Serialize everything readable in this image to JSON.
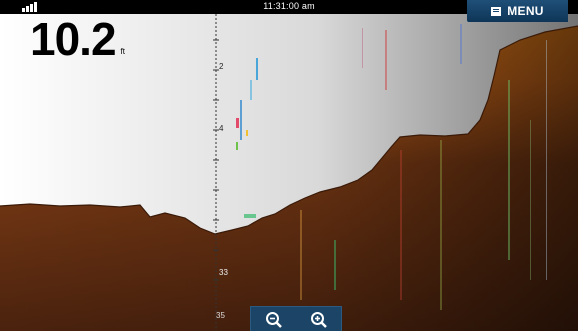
{
  "status_bar": {
    "time": "11:31:00 am",
    "signal_icon": "signal-bars-icon"
  },
  "menu": {
    "label": "MENU",
    "icon": "menu-list-icon"
  },
  "depth": {
    "value": "10.2",
    "unit": "ft"
  },
  "range_scale": {
    "mark_a": "2",
    "mark_b": "4",
    "mark_c": "33",
    "mark_bottom": "35"
  },
  "zoom": {
    "zoom_out_icon": "zoom-out-icon",
    "zoom_in_icon": "zoom-in-icon"
  },
  "colors": {
    "bottom_bright": "#d9751c",
    "bottom_dark": "#5a2a10",
    "water": "#ffffff",
    "menu_bg": "#1a476d"
  }
}
